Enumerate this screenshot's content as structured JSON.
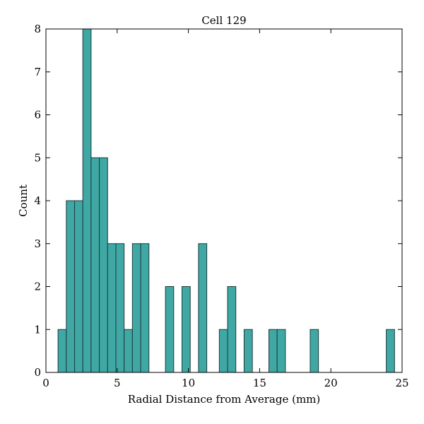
{
  "chart_data": {
    "type": "bar",
    "title": "Cell 129",
    "xlabel": "Radial Distance from Average (mm)",
    "ylabel": "Count",
    "xlim": [
      0,
      25
    ],
    "ylim": [
      0,
      8
    ],
    "xticks": [
      0,
      5,
      10,
      15,
      20,
      25
    ],
    "yticks": [
      0,
      1,
      2,
      3,
      4,
      5,
      6,
      7,
      8
    ],
    "bin_width": 0.58,
    "bar_color": "#3fa8a4",
    "edge_color": "#1f3a3a",
    "grid": false,
    "bins": [
      {
        "start": 0.85,
        "count": 1
      },
      {
        "start": 1.43,
        "count": 4
      },
      {
        "start": 2.01,
        "count": 4
      },
      {
        "start": 2.59,
        "count": 8
      },
      {
        "start": 3.17,
        "count": 5
      },
      {
        "start": 3.75,
        "count": 5
      },
      {
        "start": 4.33,
        "count": 3
      },
      {
        "start": 4.91,
        "count": 3
      },
      {
        "start": 5.49,
        "count": 1
      },
      {
        "start": 6.07,
        "count": 3
      },
      {
        "start": 6.65,
        "count": 3
      },
      {
        "start": 8.39,
        "count": 2
      },
      {
        "start": 9.55,
        "count": 2
      },
      {
        "start": 10.71,
        "count": 3
      },
      {
        "start": 12.17,
        "count": 1
      },
      {
        "start": 12.75,
        "count": 2
      },
      {
        "start": 13.91,
        "count": 1
      },
      {
        "start": 15.65,
        "count": 1
      },
      {
        "start": 16.23,
        "count": 1
      },
      {
        "start": 18.55,
        "count": 1
      },
      {
        "start": 23.89,
        "count": 1
      }
    ]
  }
}
